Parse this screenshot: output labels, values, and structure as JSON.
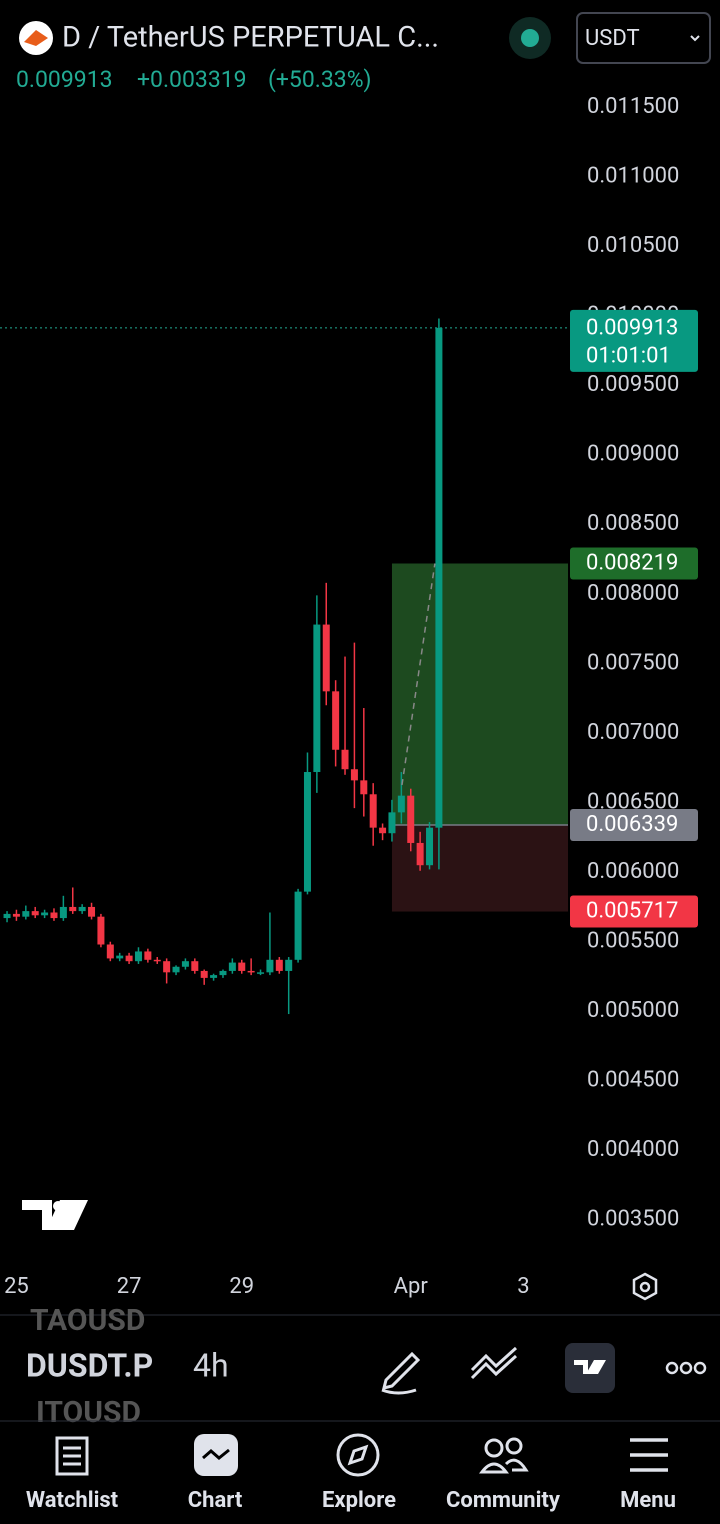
{
  "header": {
    "symbol": "D / TetherUS PERPETUAL C...",
    "currency": "USDT",
    "price": "0.009913",
    "change": "+0.003319",
    "change_pct": "(+50.33%)"
  },
  "chart_data": {
    "type": "candlestick",
    "x": [
      -4,
      0,
      4,
      8,
      12,
      16,
      20,
      24,
      28,
      32,
      36,
      40,
      44,
      48,
      52,
      56,
      60,
      64,
      68,
      72,
      76,
      80,
      84,
      88,
      92,
      96,
      100,
      104,
      108,
      112,
      116,
      120,
      124,
      128,
      132,
      136,
      140,
      144,
      148,
      152,
      156,
      160,
      164,
      168,
      172,
      176,
      180
    ],
    "open": [
      0.00567,
      0.0057,
      0.00568,
      0.00572,
      0.00569,
      0.00571,
      0.00567,
      0.00575,
      0.00572,
      0.00575,
      0.00568,
      0.00548,
      0.00538,
      0.0054,
      0.00536,
      0.00543,
      0.00537,
      0.00536,
      0.00528,
      0.00532,
      0.00536,
      0.00529,
      0.00524,
      0.00526,
      0.00529,
      0.00535,
      0.00529,
      0.00528,
      0.00528,
      0.00537,
      0.00529,
      0.00537,
      0.00586,
      0.00672,
      0.00778,
      0.0073,
      0.00688,
      0.00674,
      0.00666,
      0.00656,
      0.00632,
      0.00628,
      0.00643,
      0.00655,
      0.00621,
      0.00605,
      0.00632
    ],
    "high": [
      0.00572,
      0.00573,
      0.00576,
      0.00575,
      0.00573,
      0.00574,
      0.00583,
      0.00589,
      0.00577,
      0.00578,
      0.0057,
      0.0055,
      0.00542,
      0.00542,
      0.00546,
      0.00545,
      0.00539,
      0.00538,
      0.00533,
      0.00538,
      0.00538,
      0.0053,
      0.00527,
      0.0053,
      0.00538,
      0.00537,
      0.00538,
      0.0053,
      0.00571,
      0.00539,
      0.00539,
      0.00588,
      0.00686,
      0.00799,
      0.00808,
      0.00738,
      0.00755,
      0.00765,
      0.00718,
      0.00664,
      0.00635,
      0.00652,
      0.00672,
      0.0066,
      0.00629,
      0.00636,
      0.00998
    ],
    "low": [
      0.00564,
      0.00565,
      0.00566,
      0.00567,
      0.00567,
      0.00565,
      0.00565,
      0.0057,
      0.0057,
      0.00566,
      0.00546,
      0.00536,
      0.00536,
      0.00534,
      0.00534,
      0.00535,
      0.00534,
      0.0052,
      0.00526,
      0.0053,
      0.00527,
      0.00519,
      0.00522,
      0.00524,
      0.00527,
      0.00527,
      0.00526,
      0.00526,
      0.00526,
      0.00527,
      0.00498,
      0.00535,
      0.00584,
      0.00657,
      0.0072,
      0.00676,
      0.0067,
      0.00646,
      0.0064,
      0.00619,
      0.00623,
      0.00622,
      0.00635,
      0.00615,
      0.00601,
      0.00602,
      0.00602
    ],
    "close": [
      0.0057,
      0.00568,
      0.00572,
      0.00569,
      0.00571,
      0.00567,
      0.00575,
      0.00572,
      0.00575,
      0.00568,
      0.00548,
      0.00538,
      0.0054,
      0.00536,
      0.00543,
      0.00537,
      0.00536,
      0.00528,
      0.00532,
      0.00536,
      0.00529,
      0.00524,
      0.00526,
      0.00529,
      0.00535,
      0.00529,
      0.00528,
      0.00528,
      0.00537,
      0.00529,
      0.00537,
      0.00586,
      0.00672,
      0.00778,
      0.0073,
      0.00688,
      0.00674,
      0.00666,
      0.00656,
      0.00632,
      0.00628,
      0.00643,
      0.00655,
      0.00621,
      0.00605,
      0.00632,
      0.009913
    ],
    "up_color": "#089981",
    "down_color": "#f23645",
    "xlim": [
      -7,
      235
    ],
    "xticks": [
      {
        "value": 0,
        "label": "25"
      },
      {
        "value": 48,
        "label": "27"
      },
      {
        "value": 96,
        "label": "29"
      },
      {
        "value": 168,
        "label": "Apr"
      },
      {
        "value": 216,
        "label": "3"
      }
    ],
    "ylim": [
      0.00314,
      0.01227
    ],
    "yticks": [
      {
        "value": 0.0035,
        "label": "0.003500"
      },
      {
        "value": 0.004,
        "label": "0.004000"
      },
      {
        "value": 0.0045,
        "label": "0.004500"
      },
      {
        "value": 0.005,
        "label": "0.005000"
      },
      {
        "value": 0.0055,
        "label": "0.005500"
      },
      {
        "value": 0.006,
        "label": "0.006000"
      },
      {
        "value": 0.0065,
        "label": "0.006500"
      },
      {
        "value": 0.007,
        "label": "0.007000"
      },
      {
        "value": 0.0075,
        "label": "0.007500"
      },
      {
        "value": 0.008,
        "label": "0.008000"
      },
      {
        "value": 0.0085,
        "label": "0.008500"
      },
      {
        "value": 0.009,
        "label": "0.009000"
      },
      {
        "value": 0.0095,
        "label": "0.009500"
      },
      {
        "value": 0.01,
        "label": "0.010000"
      },
      {
        "value": 0.0105,
        "label": "0.010500"
      },
      {
        "value": 0.011,
        "label": "0.011000"
      },
      {
        "value": 0.0115,
        "label": "0.011500"
      }
    ],
    "last_price": 0.009913,
    "countdown": "01:01:01",
    "position": {
      "start": 160,
      "target": 0.008219,
      "entry": 0.006339,
      "stop": 0.005717
    }
  },
  "toolbar": {
    "symbol_prev": "TAOUSD",
    "symbol": "DUSDT.P",
    "symbol_next": "ITOUSD",
    "interval": "4h"
  },
  "nav": [
    "Watchlist",
    "Chart",
    "Explore",
    "Community",
    "Menu"
  ]
}
